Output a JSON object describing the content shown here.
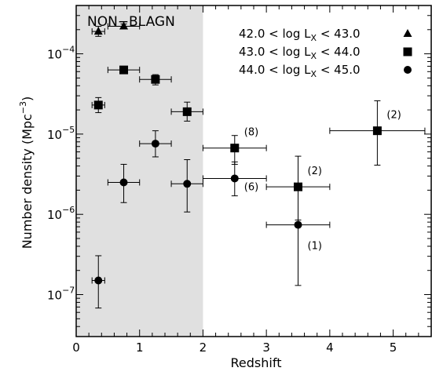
{
  "chart_data": {
    "type": "scatter",
    "xlabel": "Redshift",
    "ylabel": "Number density (Mpc",
    "ylabel_sup": "−3",
    "ylabel_close": ")",
    "xlim": [
      0,
      5.6
    ],
    "ylim": [
      3e-08,
      0.0004
    ],
    "yscale": "log",
    "xticks": [
      0,
      1,
      2,
      3,
      4,
      5
    ],
    "xtick_labels": [
      "0",
      "1",
      "2",
      "3",
      "4",
      "5"
    ],
    "yticks": [
      {
        "value": 1e-07,
        "base": "10",
        "exp": "−7"
      },
      {
        "value": 1e-06,
        "base": "10",
        "exp": "−6"
      },
      {
        "value": 1e-05,
        "base": "10",
        "exp": "−5"
      },
      {
        "value": 0.0001,
        "base": "10",
        "exp": "−4"
      }
    ],
    "shaded_region": {
      "x0": 0,
      "x1": 2,
      "label": "NON−BLAGN",
      "color": "#e0e0e0"
    },
    "legend_position": "top-right",
    "series": [
      {
        "name": "42.0 < log L",
        "name_sub": "X",
        "name_tail": " < 43.0",
        "marker": "triangle",
        "points": [
          {
            "x": 0.35,
            "y": 0.00019,
            "xerr": 0.1,
            "ylo": 0.000165,
            "yhi": 0.00022
          },
          {
            "x": 0.75,
            "y": 0.00022,
            "xerr": 0.25,
            "ylo": 0.000205,
            "yhi": 0.000235
          }
        ]
      },
      {
        "name": "43.0 < log L",
        "name_sub": "X",
        "name_tail": " < 44.0",
        "marker": "square",
        "points": [
          {
            "x": 0.35,
            "y": 2.3e-05,
            "xerr": 0.1,
            "ylo": 1.85e-05,
            "yhi": 2.85e-05
          },
          {
            "x": 0.75,
            "y": 6.3e-05,
            "xerr": 0.25,
            "ylo": 5.8e-05,
            "yhi": 6.8e-05
          },
          {
            "x": 1.25,
            "y": 4.8e-05,
            "xerr": 0.25,
            "ylo": 4.1e-05,
            "yhi": 5.5e-05
          },
          {
            "x": 1.75,
            "y": 1.9e-05,
            "xerr": 0.25,
            "ylo": 1.45e-05,
            "yhi": 2.5e-05
          },
          {
            "x": 2.5,
            "y": 6.7e-06,
            "xerr": 0.5,
            "ylo": 4.2e-06,
            "yhi": 9.6e-06,
            "annotation": "(8)"
          },
          {
            "x": 3.5,
            "y": 2.2e-06,
            "xerr": 0.5,
            "ylo": 8.5e-07,
            "yhi": 5.3e-06,
            "annotation": "(2)"
          },
          {
            "x": 4.75,
            "y": 1.1e-05,
            "xerr": 0.75,
            "ylo": 4.1e-06,
            "yhi": 2.6e-05,
            "annotation": "(2)"
          }
        ]
      },
      {
        "name": "44.0 < log L",
        "name_sub": "X",
        "name_tail": " < 45.0",
        "marker": "circle",
        "points": [
          {
            "x": 0.35,
            "y": 1.5e-07,
            "xerr": 0.1,
            "ylo": 6.8e-08,
            "yhi": 3.05e-07
          },
          {
            "x": 0.75,
            "y": 2.5e-06,
            "xerr": 0.25,
            "ylo": 1.4e-06,
            "yhi": 4.2e-06
          },
          {
            "x": 1.25,
            "y": 7.6e-06,
            "xerr": 0.25,
            "ylo": 5.2e-06,
            "yhi": 1.1e-05
          },
          {
            "x": 1.75,
            "y": 2.4e-06,
            "xerr": 0.25,
            "ylo": 1.07e-06,
            "yhi": 4.8e-06
          },
          {
            "x": 2.5,
            "y": 2.8e-06,
            "xerr": 0.5,
            "ylo": 1.7e-06,
            "yhi": 4.5e-06,
            "annotation": "(6)"
          },
          {
            "x": 3.5,
            "y": 7.4e-07,
            "xerr": 0.5,
            "ylo": 1.3e-07,
            "yhi": 2.25e-06,
            "annotation": "(1)"
          }
        ]
      }
    ]
  }
}
